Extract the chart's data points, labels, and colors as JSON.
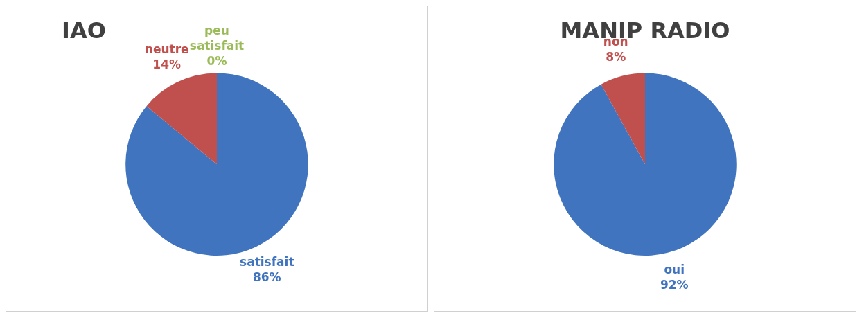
{
  "chart_data": [
    {
      "type": "pie",
      "title": "IAO",
      "categories": [
        "satisfait",
        "neutre",
        "peu satisfait"
      ],
      "values": [
        86,
        14,
        0
      ],
      "value_labels": [
        "86%",
        "14%",
        "0%"
      ],
      "colors": [
        "#4174be",
        "#c0504d",
        "#9bbb59"
      ],
      "legend": false
    },
    {
      "type": "pie",
      "title": "MANIP RADIO",
      "categories": [
        "oui",
        "non"
      ],
      "values": [
        92,
        8
      ],
      "value_labels": [
        "92%",
        "8%"
      ],
      "colors": [
        "#4174be",
        "#c0504d"
      ],
      "legend": false
    }
  ]
}
